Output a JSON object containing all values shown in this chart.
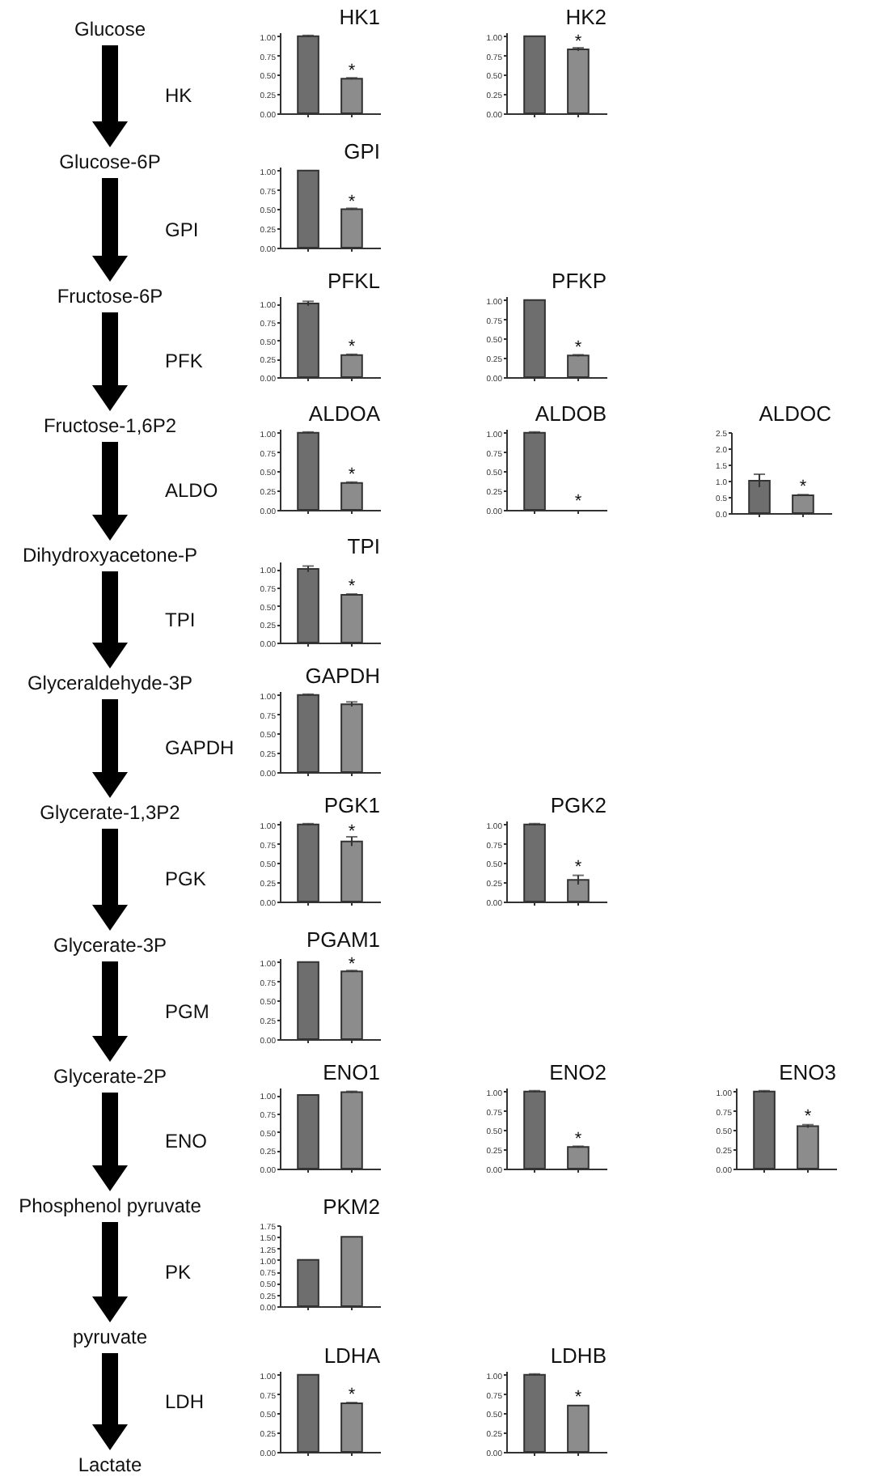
{
  "chart_data": [
    {
      "type": "other",
      "annotations": [
        "Glucose",
        "HK",
        "Glucose-6P",
        "GPI",
        "Fructose-6P",
        "PFK",
        "Fructose-1,6P2",
        "ALDO",
        "Dihydroxyacetone-P",
        "TPI",
        "Glyceraldehyde-3P",
        "GAPDH",
        "Glycerate-1,3P2",
        "PGK",
        "Glycerate-3P",
        "PGM",
        "Glycerate-2P",
        "ENO",
        "Phosphenol pyruvate",
        "PK",
        "pyruvate",
        "LDH",
        "Lactate"
      ]
    },
    {
      "type": "bar",
      "title": "HK1",
      "categories": [
        null,
        null
      ],
      "values": [
        1.0,
        0.45
      ],
      "errors": [
        0.01,
        0.01
      ],
      "colors": [
        "#6e6e6e",
        "#8c8c8c"
      ],
      "ylim": [
        0,
        1.05
      ],
      "yticks": [
        {
          "value": 0,
          "label": "0.00"
        },
        {
          "value": 0.25,
          "label": "0.25"
        },
        {
          "value": 0.5,
          "label": "0.50"
        },
        {
          "value": 0.75,
          "label": "0.75"
        },
        {
          "value": 1,
          "label": "1.00"
        }
      ],
      "annotations": [
        {
          "text": "*",
          "y": 0.5
        }
      ]
    },
    {
      "type": "bar",
      "title": "HK2",
      "categories": [
        null,
        null
      ],
      "values": [
        1.0,
        0.83
      ],
      "errors": [
        null,
        0.02
      ],
      "colors": [
        "#6e6e6e",
        "#8c8c8c"
      ],
      "ylim": [
        0,
        1.05
      ],
      "yticks": [
        {
          "value": 0,
          "label": "0.00"
        },
        {
          "value": 0.25,
          "label": "0.25"
        },
        {
          "value": 0.5,
          "label": "0.50"
        },
        {
          "value": 0.75,
          "label": "0.75"
        },
        {
          "value": 1,
          "label": "1.00"
        }
      ],
      "annotations": [
        {
          "text": "*",
          "y": 0.88
        }
      ]
    },
    {
      "type": "bar",
      "title": "GPI",
      "categories": [
        null,
        null
      ],
      "values": [
        1.0,
        0.5
      ],
      "errors": [
        null,
        0.01
      ],
      "colors": [
        "#6e6e6e",
        "#8c8c8c"
      ],
      "ylim": [
        0,
        1.05
      ],
      "yticks": [
        {
          "value": 0,
          "label": "0.00"
        },
        {
          "value": 0.25,
          "label": "0.25"
        },
        {
          "value": 0.5,
          "label": "0.50"
        },
        {
          "value": 0.75,
          "label": "0.75"
        },
        {
          "value": 1,
          "label": "1.00"
        }
      ],
      "annotations": [
        {
          "text": "*",
          "y": 0.55
        }
      ]
    },
    {
      "type": "bar",
      "title": "PFKL",
      "categories": [
        null,
        null
      ],
      "values": [
        1.0,
        0.3
      ],
      "errors": [
        0.03,
        0.01
      ],
      "colors": [
        "#6e6e6e",
        "#8c8c8c"
      ],
      "ylim": [
        0,
        1.1
      ],
      "yticks": [
        {
          "value": 0,
          "label": "0.00"
        },
        {
          "value": 0.25,
          "label": "0.25"
        },
        {
          "value": 0.5,
          "label": "0.50"
        },
        {
          "value": 0.75,
          "label": "0.75"
        },
        {
          "value": 1,
          "label": "1.00"
        }
      ],
      "annotations": [
        {
          "text": "*",
          "y": 0.36
        }
      ]
    },
    {
      "type": "bar",
      "title": "PFKP",
      "categories": [
        null,
        null
      ],
      "values": [
        1.0,
        0.28
      ],
      "errors": [
        null,
        0.01
      ],
      "colors": [
        "#6e6e6e",
        "#8c8c8c"
      ],
      "ylim": [
        0,
        1.05
      ],
      "yticks": [
        {
          "value": 0,
          "label": "0.00"
        },
        {
          "value": 0.25,
          "label": "0.25"
        },
        {
          "value": 0.5,
          "label": "0.50"
        },
        {
          "value": 0.75,
          "label": "0.75"
        },
        {
          "value": 1,
          "label": "1.00"
        }
      ],
      "annotations": [
        {
          "text": "*",
          "y": 0.34
        }
      ]
    },
    {
      "type": "bar",
      "title": "ALDOA",
      "categories": [
        null,
        null
      ],
      "values": [
        1.0,
        0.35
      ],
      "errors": [
        0.01,
        0.01
      ],
      "colors": [
        "#6e6e6e",
        "#8c8c8c"
      ],
      "ylim": [
        0,
        1.05
      ],
      "yticks": [
        {
          "value": 0,
          "label": "0.00"
        },
        {
          "value": 0.25,
          "label": "0.25"
        },
        {
          "value": 0.5,
          "label": "0.50"
        },
        {
          "value": 0.75,
          "label": "0.75"
        },
        {
          "value": 1,
          "label": "1.00"
        }
      ],
      "annotations": [
        {
          "text": "*",
          "y": 0.41
        }
      ]
    },
    {
      "type": "bar",
      "title": "ALDOB",
      "categories": [
        null,
        null
      ],
      "values": [
        1.0,
        0.0
      ],
      "errors": [
        0.01,
        null
      ],
      "colors": [
        "#6e6e6e",
        "#8c8c8c"
      ],
      "ylim": [
        0,
        1.05
      ],
      "yticks": [
        {
          "value": 0,
          "label": "0.00"
        },
        {
          "value": 0.25,
          "label": "0.25"
        },
        {
          "value": 0.5,
          "label": "0.50"
        },
        {
          "value": 0.75,
          "label": "0.75"
        },
        {
          "value": 1,
          "label": "1.00"
        }
      ],
      "annotations": [
        {
          "text": "*",
          "y": 0.06
        }
      ]
    },
    {
      "type": "bar",
      "title": "ALDOC",
      "categories": [
        null,
        null
      ],
      "values": [
        1.0,
        0.55
      ],
      "errors": [
        0.2,
        0.02
      ],
      "colors": [
        "#6e6e6e",
        "#8c8c8c"
      ],
      "ylim": [
        0,
        2.5
      ],
      "yticks": [
        {
          "value": 0,
          "label": "0.0"
        },
        {
          "value": 0.5,
          "label": "0.5"
        },
        {
          "value": 1,
          "label": "1.0"
        },
        {
          "value": 1.5,
          "label": "1.5"
        },
        {
          "value": 2,
          "label": "2.0"
        },
        {
          "value": 2.5,
          "label": "2.5"
        }
      ],
      "annotations": [
        {
          "text": "*",
          "y": 0.7
        }
      ]
    },
    {
      "type": "bar",
      "title": "TPI",
      "categories": [
        null,
        null
      ],
      "values": [
        1.0,
        0.65
      ],
      "errors": [
        0.04,
        0.01
      ],
      "colors": [
        "#6e6e6e",
        "#8c8c8c"
      ],
      "ylim": [
        0,
        1.1
      ],
      "yticks": [
        {
          "value": 0,
          "label": "0.00"
        },
        {
          "value": 0.25,
          "label": "0.25"
        },
        {
          "value": 0.5,
          "label": "0.50"
        },
        {
          "value": 0.75,
          "label": "0.75"
        },
        {
          "value": 1,
          "label": "1.00"
        }
      ],
      "annotations": [
        {
          "text": "*",
          "y": 0.72
        }
      ]
    },
    {
      "type": "bar",
      "title": "GAPDH",
      "categories": [
        null,
        null
      ],
      "values": [
        1.0,
        0.88
      ],
      "errors": [
        0.01,
        0.03
      ],
      "colors": [
        "#6e6e6e",
        "#8c8c8c"
      ],
      "ylim": [
        0,
        1.05
      ],
      "yticks": [
        {
          "value": 0,
          "label": "0.00"
        },
        {
          "value": 0.25,
          "label": "0.25"
        },
        {
          "value": 0.5,
          "label": "0.50"
        },
        {
          "value": 0.75,
          "label": "0.75"
        },
        {
          "value": 1,
          "label": "1.00"
        }
      ]
    },
    {
      "type": "bar",
      "title": "PGK1",
      "categories": [
        null,
        null
      ],
      "values": [
        1.0,
        0.78
      ],
      "errors": [
        0.01,
        0.06
      ],
      "colors": [
        "#6e6e6e",
        "#8c8c8c"
      ],
      "ylim": [
        0,
        1.05
      ],
      "yticks": [
        {
          "value": 0,
          "label": "0.00"
        },
        {
          "value": 0.25,
          "label": "0.25"
        },
        {
          "value": 0.5,
          "label": "0.50"
        },
        {
          "value": 0.75,
          "label": "0.75"
        },
        {
          "value": 1,
          "label": "1.00"
        }
      ],
      "annotations": [
        {
          "text": "*",
          "y": 0.86
        }
      ]
    },
    {
      "type": "bar",
      "title": "PGK2",
      "categories": [
        null,
        null
      ],
      "values": [
        1.0,
        0.28
      ],
      "errors": [
        0.01,
        0.06
      ],
      "colors": [
        "#6e6e6e",
        "#8c8c8c"
      ],
      "ylim": [
        0,
        1.05
      ],
      "yticks": [
        {
          "value": 0,
          "label": "0.00"
        },
        {
          "value": 0.25,
          "label": "0.25"
        },
        {
          "value": 0.5,
          "label": "0.50"
        },
        {
          "value": 0.75,
          "label": "0.75"
        },
        {
          "value": 1,
          "label": "1.00"
        }
      ],
      "annotations": [
        {
          "text": "*",
          "y": 0.4
        }
      ]
    },
    {
      "type": "bar",
      "title": "PGAM1",
      "categories": [
        null,
        null
      ],
      "values": [
        1.0,
        0.88
      ],
      "errors": [
        null,
        0.01
      ],
      "colors": [
        "#6e6e6e",
        "#8c8c8c"
      ],
      "ylim": [
        0,
        1.05
      ],
      "yticks": [
        {
          "value": 0,
          "label": "0.00"
        },
        {
          "value": 0.25,
          "label": "0.25"
        },
        {
          "value": 0.5,
          "label": "0.50"
        },
        {
          "value": 0.75,
          "label": "0.75"
        },
        {
          "value": 1,
          "label": "1.00"
        }
      ],
      "annotations": [
        {
          "text": "*",
          "y": 0.92
        }
      ]
    },
    {
      "type": "bar",
      "title": "ENO1",
      "categories": [
        null,
        null
      ],
      "values": [
        1.0,
        1.04
      ],
      "errors": [
        null,
        0.01
      ],
      "colors": [
        "#6e6e6e",
        "#8c8c8c"
      ],
      "ylim": [
        0,
        1.1
      ],
      "yticks": [
        {
          "value": 0,
          "label": "0.00"
        },
        {
          "value": 0.25,
          "label": "0.25"
        },
        {
          "value": 0.5,
          "label": "0.50"
        },
        {
          "value": 0.75,
          "label": "0.75"
        },
        {
          "value": 1,
          "label": "1.00"
        }
      ]
    },
    {
      "type": "bar",
      "title": "ENO2",
      "categories": [
        null,
        null
      ],
      "values": [
        1.0,
        0.28
      ],
      "errors": [
        0.01,
        0.01
      ],
      "colors": [
        "#6e6e6e",
        "#8c8c8c"
      ],
      "ylim": [
        0,
        1.05
      ],
      "yticks": [
        {
          "value": 0,
          "label": "0.00"
        },
        {
          "value": 0.25,
          "label": "0.25"
        },
        {
          "value": 0.5,
          "label": "0.50"
        },
        {
          "value": 0.75,
          "label": "0.75"
        },
        {
          "value": 1,
          "label": "1.00"
        }
      ],
      "annotations": [
        {
          "text": "*",
          "y": 0.34
        }
      ]
    },
    {
      "type": "bar",
      "title": "ENO3",
      "categories": [
        null,
        null
      ],
      "values": [
        1.0,
        0.55
      ],
      "errors": [
        0.01,
        0.02
      ],
      "colors": [
        "#6e6e6e",
        "#8c8c8c"
      ],
      "ylim": [
        0,
        1.05
      ],
      "yticks": [
        {
          "value": 0,
          "label": "0.00"
        },
        {
          "value": 0.25,
          "label": "0.25"
        },
        {
          "value": 0.5,
          "label": "0.50"
        },
        {
          "value": 0.75,
          "label": "0.75"
        },
        {
          "value": 1,
          "label": "1.00"
        }
      ],
      "annotations": [
        {
          "text": "*",
          "y": 0.63
        }
      ]
    },
    {
      "type": "bar",
      "title": "PKM2",
      "categories": [
        null,
        null
      ],
      "values": [
        1.0,
        1.5
      ],
      "colors": [
        "#6e6e6e",
        "#8c8c8c"
      ],
      "ylim": [
        0,
        1.75
      ],
      "yticks": [
        {
          "value": 0,
          "label": "0.00"
        },
        {
          "value": 0.25,
          "label": "0.25"
        },
        {
          "value": 0.5,
          "label": "0.50"
        },
        {
          "value": 0.75,
          "label": "0.75"
        },
        {
          "value": 1,
          "label": "1.00"
        },
        {
          "value": 1.25,
          "label": "1.25"
        },
        {
          "value": 1.5,
          "label": "1.50"
        },
        {
          "value": 1.75,
          "label": "1.75"
        }
      ]
    },
    {
      "type": "bar",
      "title": "LDHA",
      "categories": [
        null,
        null
      ],
      "values": [
        1.0,
        0.63
      ],
      "errors": [
        null,
        0.01
      ],
      "colors": [
        "#6e6e6e",
        "#8c8c8c"
      ],
      "ylim": [
        0,
        1.05
      ],
      "yticks": [
        {
          "value": 0,
          "label": "0.00"
        },
        {
          "value": 0.25,
          "label": "0.25"
        },
        {
          "value": 0.5,
          "label": "0.50"
        },
        {
          "value": 0.75,
          "label": "0.75"
        },
        {
          "value": 1,
          "label": "1.00"
        }
      ],
      "annotations": [
        {
          "text": "*",
          "y": 0.69
        }
      ]
    },
    {
      "type": "bar",
      "title": "LDHB",
      "categories": [
        null,
        null
      ],
      "values": [
        1.0,
        0.6
      ],
      "errors": [
        0.01,
        null
      ],
      "colors": [
        "#6e6e6e",
        "#8c8c8c"
      ],
      "ylim": [
        0,
        1.05
      ],
      "yticks": [
        {
          "value": 0,
          "label": "0.00"
        },
        {
          "value": 0.25,
          "label": "0.25"
        },
        {
          "value": 0.5,
          "label": "0.50"
        },
        {
          "value": 0.75,
          "label": "0.75"
        },
        {
          "value": 1,
          "label": "1.00"
        }
      ],
      "annotations": [
        {
          "text": "*",
          "y": 0.66
        }
      ]
    }
  ]
}
